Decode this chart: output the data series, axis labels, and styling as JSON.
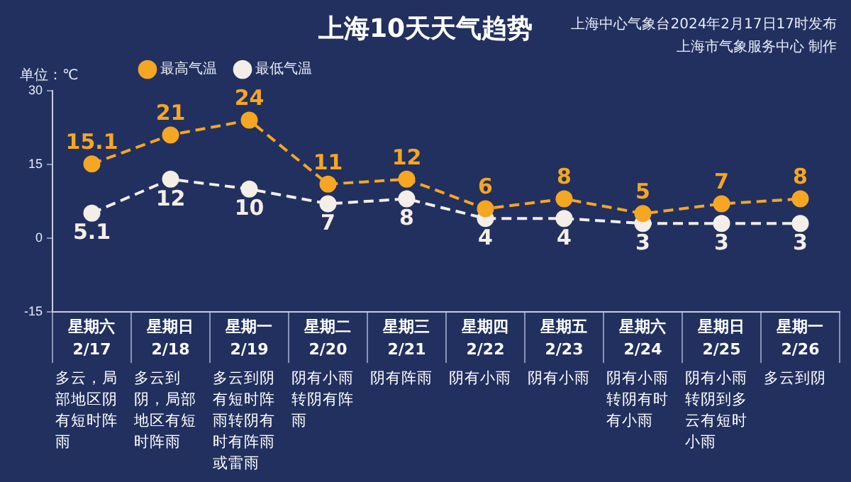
{
  "chart_data": {
    "type": "line",
    "title": "上海10天天气趋势",
    "ylabel": "单位：℃",
    "categories": [
      "星期六 2/17",
      "星期日 2/18",
      "星期一 2/19",
      "星期二 2/20",
      "星期三 2/21",
      "星期四 2/22",
      "星期五 2/23",
      "星期六 2/24",
      "星期日 2/25",
      "星期一 2/26"
    ],
    "series": [
      {
        "name": "最高气温",
        "color": "#f5a623",
        "values": [
          15.1,
          21,
          24,
          11,
          12,
          6,
          8,
          5,
          7,
          8
        ]
      },
      {
        "name": "最低气温",
        "color": "#f3eee8",
        "values": [
          5.1,
          12,
          10,
          7,
          8,
          4,
          4,
          3,
          3,
          3
        ]
      }
    ],
    "ylim": [
      -15,
      30
    ],
    "yticks": [
      -15,
      0,
      15,
      30
    ],
    "grid": false,
    "legend": "top left",
    "marker": "circle",
    "line_style": "dashed",
    "data_labels": true,
    "annotations": [
      "上海中心气象台2024年2月17日17时发布",
      "上海市气象服务中心 制作",
      "多云，局部地区阴有短时阵雨",
      "多云到阴，局部地区有短时阵雨",
      "多云到阴有短时阵雨转阴有时有阵雨或雷雨",
      "阴有小雨转阴有阵雨",
      "阴有阵雨",
      "阴有小雨",
      "阴有小雨",
      "阴有小雨转阴有时有小雨",
      "阴有小雨转阴到多云有短时小雨",
      "多云到阴"
    ]
  }
}
